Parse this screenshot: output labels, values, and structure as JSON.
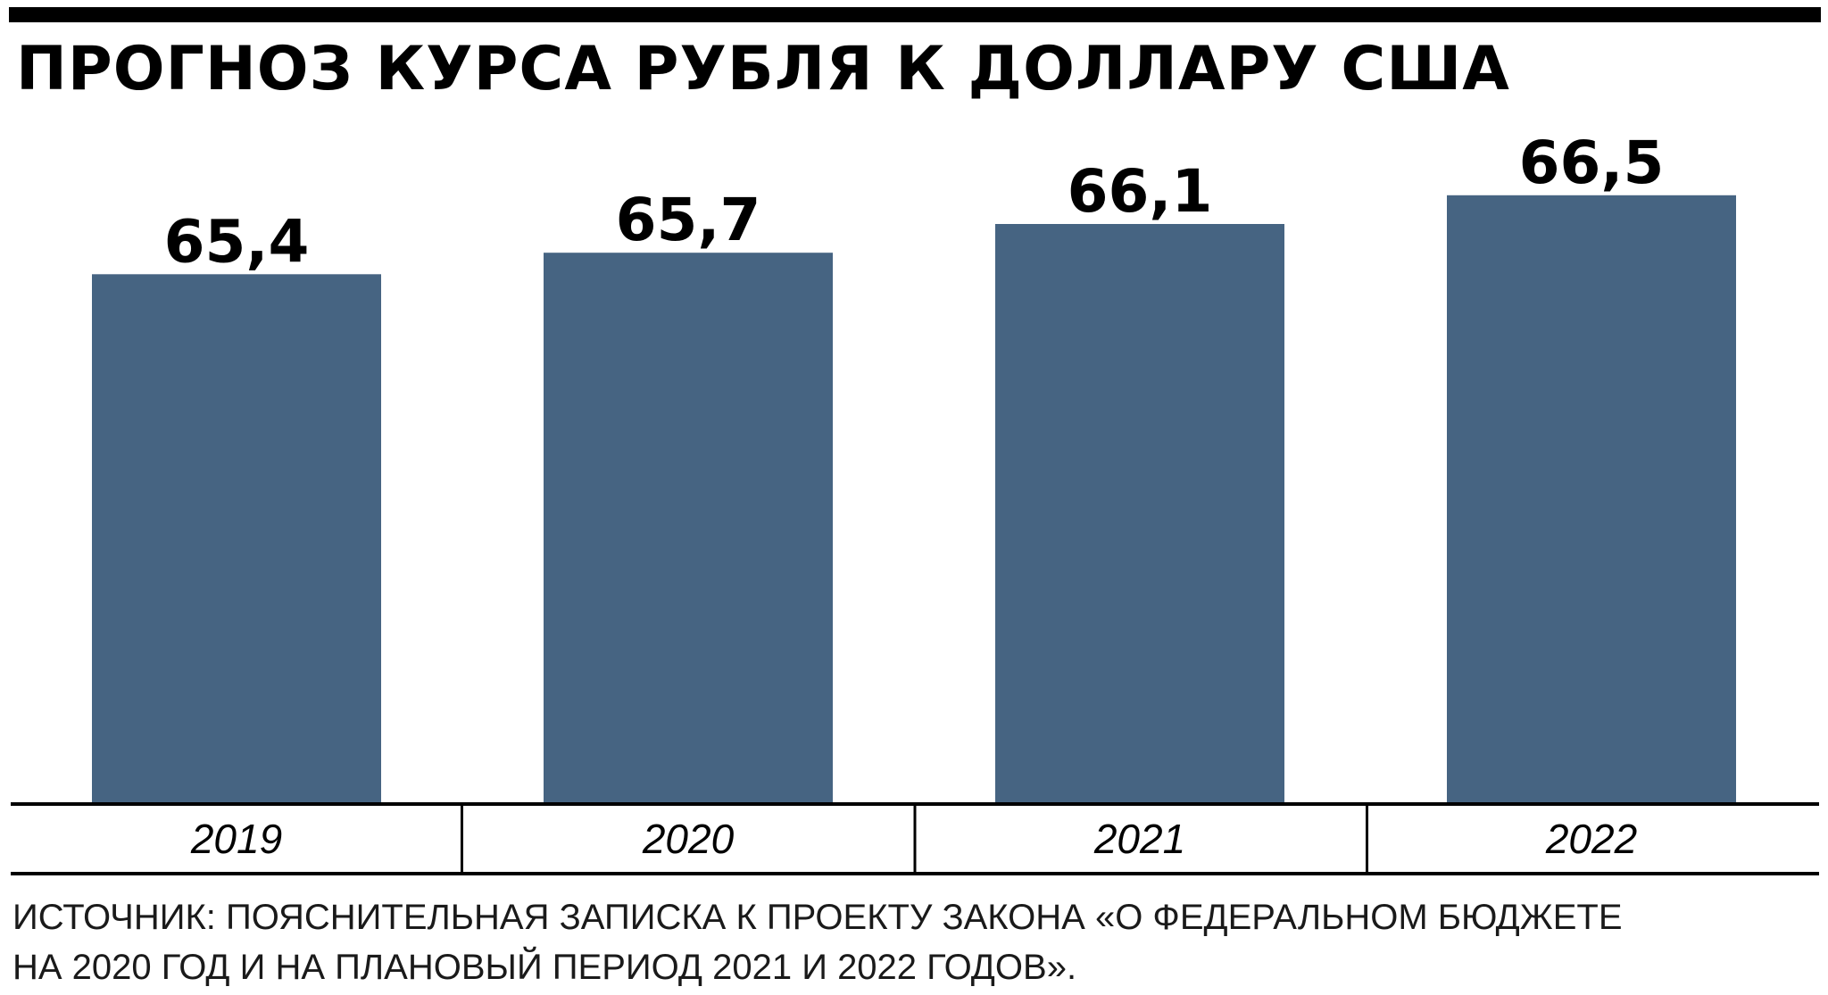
{
  "chart_data": {
    "type": "bar",
    "title": "ПРОГНОЗ КУРСА РУБЛЯ К ДОЛЛАРУ США",
    "categories": [
      "2019",
      "2020",
      "2021",
      "2022"
    ],
    "values": [
      65.4,
      65.7,
      66.1,
      66.5
    ],
    "value_labels": [
      "65,4",
      "65,7",
      "66,1",
      "66,5"
    ],
    "bar_color": "#466482",
    "axis_color": "#000000",
    "grid": false,
    "legend": "none"
  },
  "source": {
    "line1": "ИСТОЧНИК: ПОЯСНИТЕЛЬНАЯ ЗАПИСКА К ПРОЕКТУ ЗАКОНА «О ФЕДЕРАЛЬНОМ БЮДЖЕТЕ",
    "line2": "НА 2020 ГОД И НА ПЛАНОВЫЙ ПЕРИОД 2021 И 2022 ГОДОВ»."
  }
}
